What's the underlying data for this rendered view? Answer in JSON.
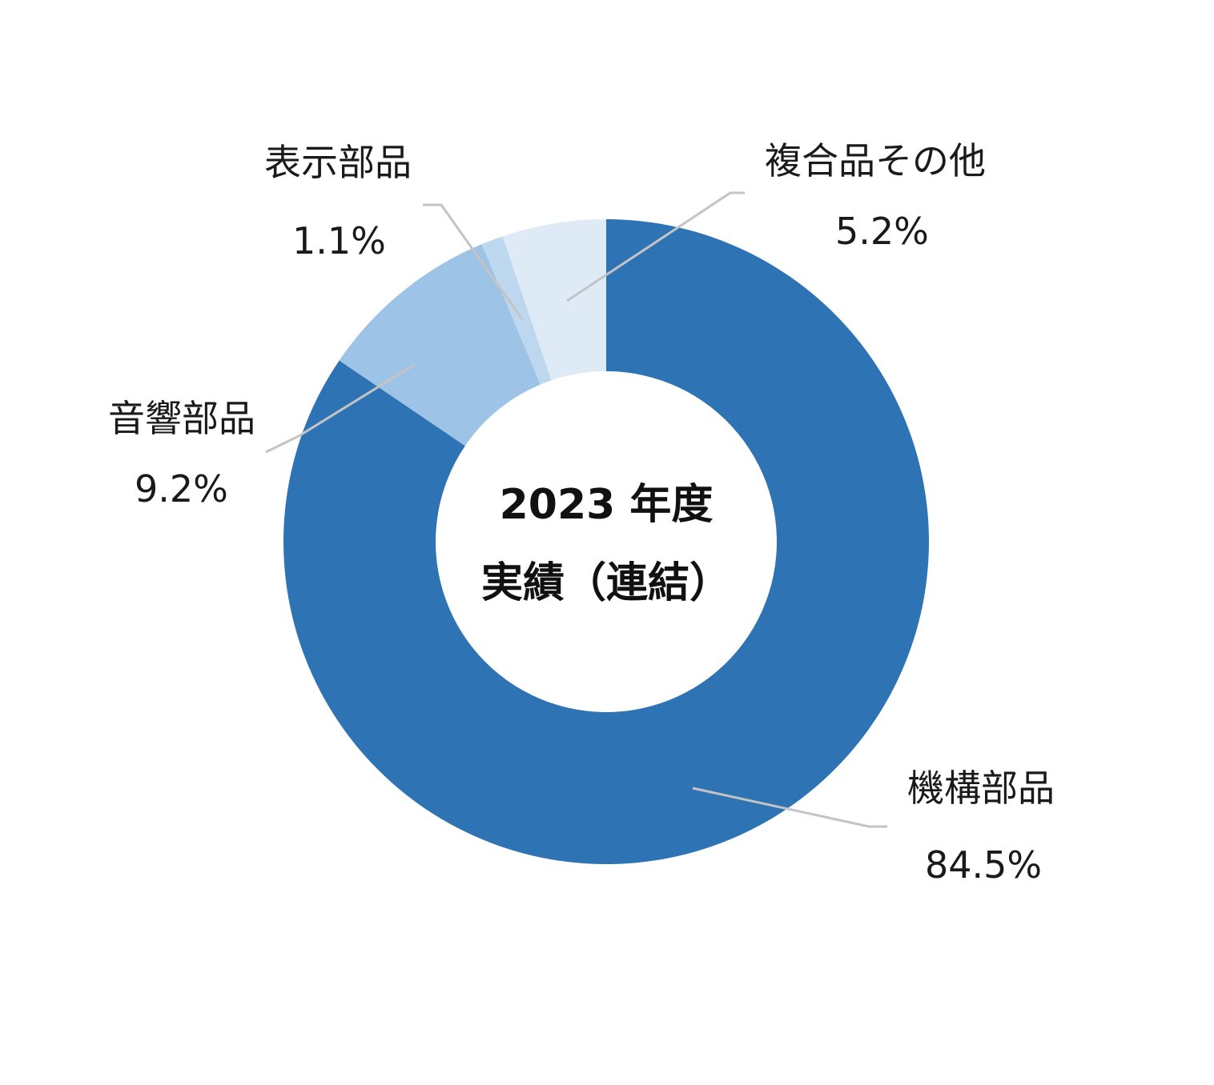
{
  "chart_data": {
    "type": "pie",
    "center_text": [
      "2023 年度",
      "実績（連結）"
    ],
    "slices": [
      {
        "label": "機構部品",
        "value": 84.5,
        "value_text": "84.5%",
        "color": "#2e74b5"
      },
      {
        "label": "音響部品",
        "value": 9.2,
        "value_text": "9.2%",
        "color": "#9dc3e6"
      },
      {
        "label": "表示部品",
        "value": 1.1,
        "value_text": "1.1%",
        "color": "#bdd7ee"
      },
      {
        "label": "複合品その他",
        "value": 5.2,
        "value_text": "5.2%",
        "color": "#deebf7"
      }
    ]
  }
}
